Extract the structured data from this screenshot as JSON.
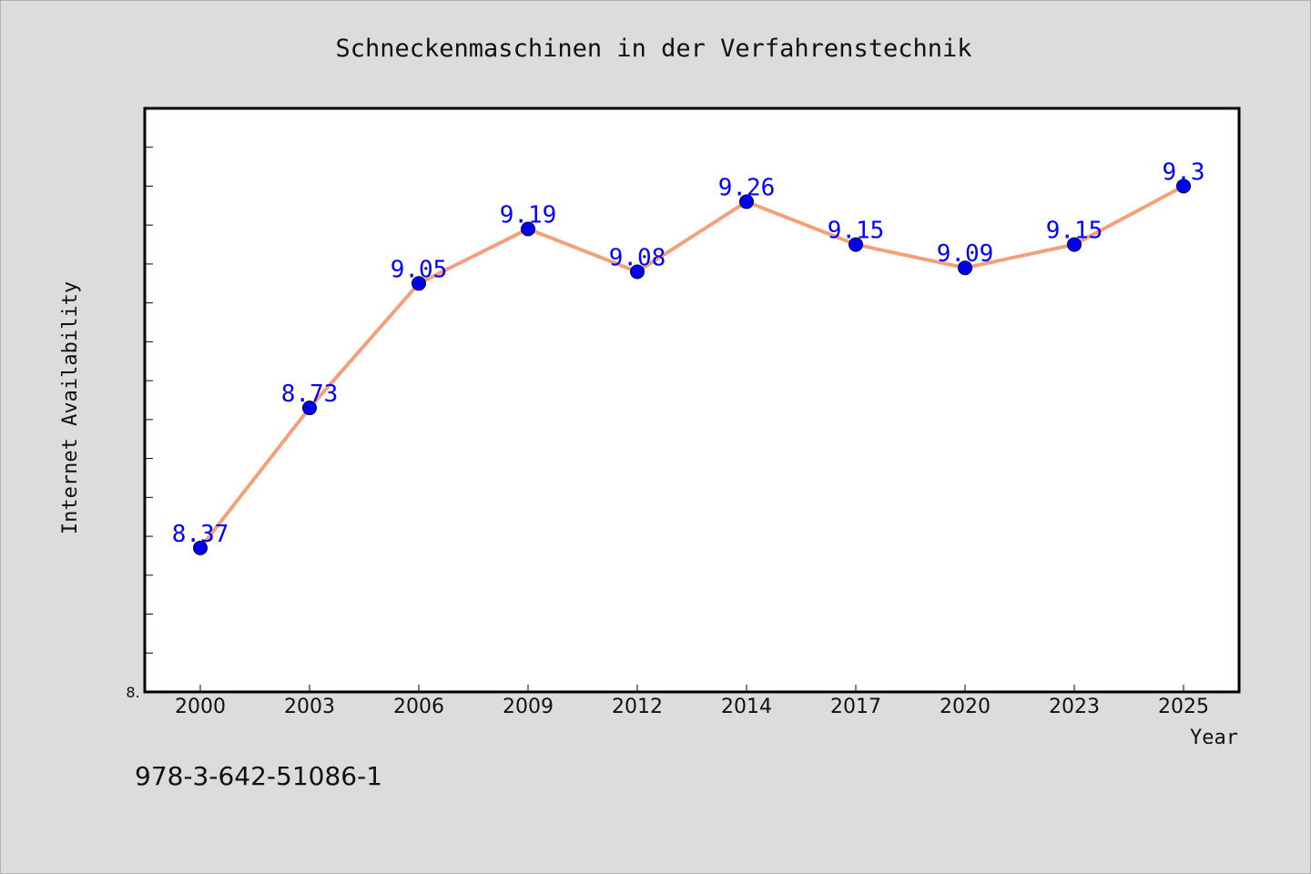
{
  "chart_data": {
    "type": "line",
    "title": "Schneckenmaschinen in der Verfahrenstechnik",
    "xlabel": "Year",
    "ylabel": "Internet Availability",
    "categories": [
      "2000",
      "2003",
      "2006",
      "2009",
      "2012",
      "2014",
      "2017",
      "2020",
      "2023",
      "2025"
    ],
    "series": [
      {
        "values": [
          8.37,
          8.73,
          9.05,
          9.19,
          9.08,
          9.26,
          9.15,
          9.09,
          9.15,
          9.3
        ],
        "labels": [
          "8.37",
          "8.73",
          "9.05",
          "9.19",
          "9.08",
          "9.26",
          "9.15",
          "9.09",
          "9.15",
          "9.3"
        ]
      }
    ],
    "ylim": [
      8.0,
      9.5
    ],
    "y_tick_step": 0.1,
    "y_min_label": "8.",
    "grid": false,
    "colors": {
      "line": "#f4a07a",
      "marker": "#0000ee",
      "data_label": "#0000ff",
      "plot_bg": "#ffffff",
      "page_bg": "#dcdcdc"
    }
  },
  "footer_text": "978-3-642-51086-1"
}
